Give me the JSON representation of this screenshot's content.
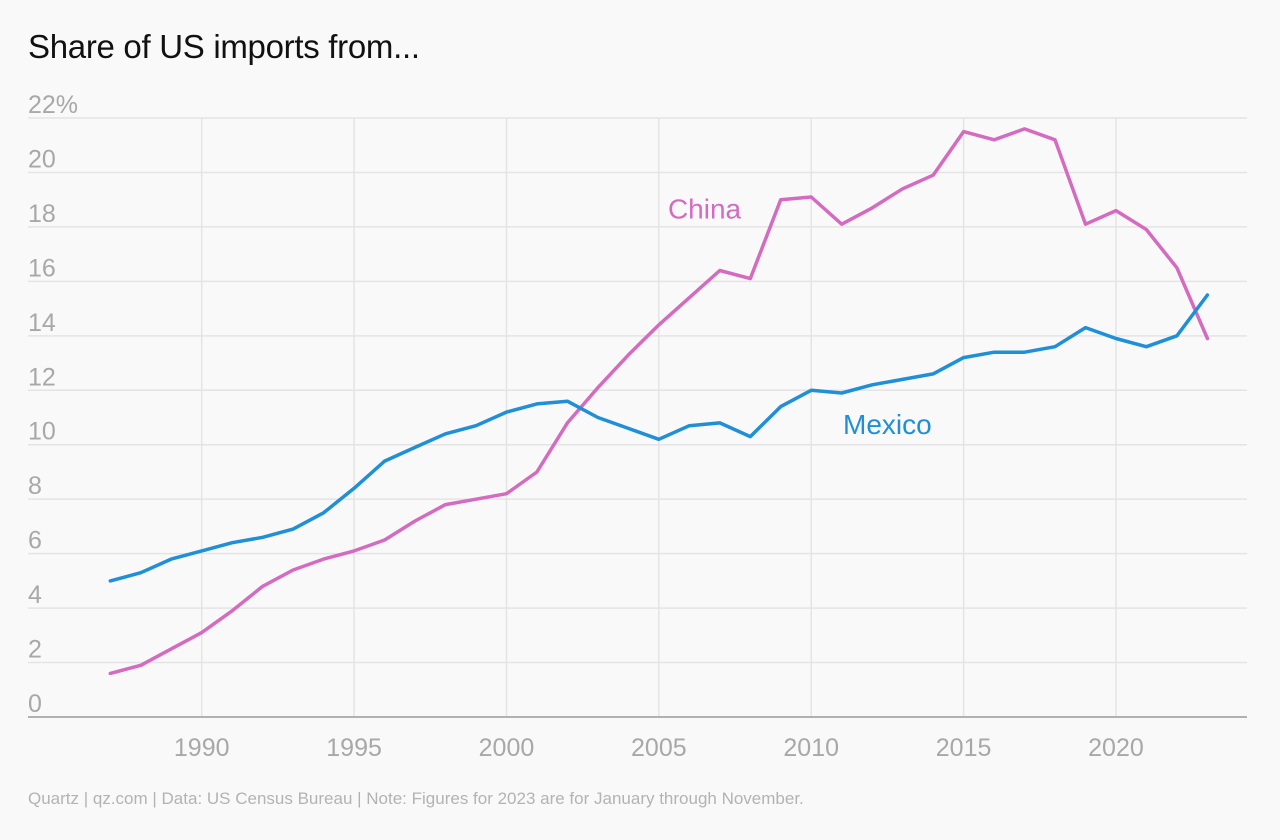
{
  "title": "Share of US imports from...",
  "footer": "Quartz | qz.com | Data: US Census Bureau | Note: Figures for 2023 are for January through November.",
  "colors": {
    "china": "#d46bc0",
    "mexico": "#1f8fd8",
    "grid": "#e4e4e4",
    "axis_text": "#a8a8a8",
    "baseline": "#999999"
  },
  "chart_data": {
    "type": "line",
    "title": "Share of US imports from...",
    "xlabel": "",
    "ylabel": "",
    "xlim": [
      1984.3,
      2024.3
    ],
    "ylim": [
      0,
      22
    ],
    "y_ticks": [
      0,
      2,
      4,
      6,
      8,
      10,
      12,
      14,
      16,
      18,
      20,
      22
    ],
    "y_tick_labels": [
      "0",
      "2",
      "4",
      "6",
      "8",
      "10",
      "12",
      "14",
      "16",
      "18",
      "20",
      "22%"
    ],
    "x_ticks": [
      1990,
      1995,
      2000,
      2005,
      2010,
      2015,
      2020
    ],
    "x_tick_labels": [
      "1990",
      "1995",
      "2000",
      "2005",
      "2010",
      "2015",
      "2020"
    ],
    "grid": true,
    "legend": "inline labels",
    "x": [
      1987,
      1988,
      1989,
      1990,
      1991,
      1992,
      1993,
      1994,
      1995,
      1996,
      1997,
      1998,
      1999,
      2000,
      2001,
      2002,
      2003,
      2004,
      2005,
      2006,
      2007,
      2008,
      2009,
      2010,
      2011,
      2012,
      2013,
      2014,
      2015,
      2016,
      2017,
      2018,
      2019,
      2020,
      2021,
      2022,
      2023
    ],
    "series": [
      {
        "name": "China",
        "color": "#d46bc0",
        "values": [
          1.6,
          1.9,
          2.5,
          3.1,
          3.9,
          4.8,
          5.4,
          5.8,
          6.1,
          6.5,
          7.2,
          7.8,
          8.0,
          8.2,
          9.0,
          10.8,
          12.1,
          13.3,
          14.4,
          15.4,
          16.4,
          16.1,
          19.0,
          19.1,
          18.1,
          18.7,
          19.4,
          19.9,
          21.5,
          21.2,
          21.6,
          21.2,
          18.1,
          18.6,
          17.9,
          16.5,
          13.9
        ]
      },
      {
        "name": "Mexico",
        "color": "#1f8fd8",
        "values": [
          5.0,
          5.3,
          5.8,
          6.1,
          6.4,
          6.6,
          6.9,
          7.5,
          8.4,
          9.4,
          9.9,
          10.4,
          10.7,
          11.2,
          11.5,
          11.6,
          11.0,
          10.6,
          10.2,
          10.7,
          10.8,
          10.3,
          11.4,
          12.0,
          11.9,
          12.2,
          12.4,
          12.6,
          13.2,
          13.4,
          13.4,
          13.6,
          14.3,
          13.9,
          13.6,
          14.0,
          15.5
        ]
      }
    ],
    "annotations": [
      {
        "text": "China",
        "series": "China",
        "x": 2006.5,
        "y": 18.3
      },
      {
        "text": "Mexico",
        "series": "Mexico",
        "x": 2012.5,
        "y": 10.4
      }
    ]
  }
}
